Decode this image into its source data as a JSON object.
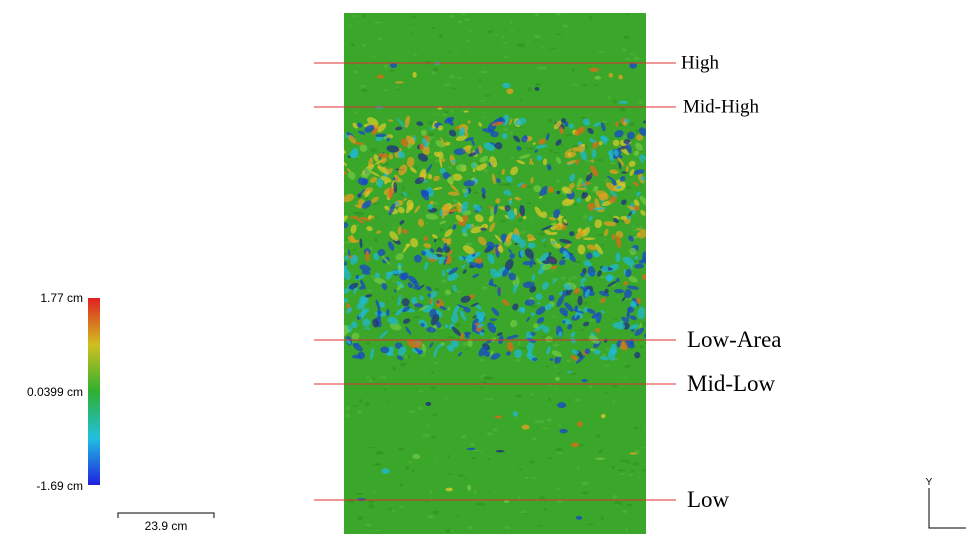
{
  "colorbar": {
    "max_label": "1.77 cm",
    "mid_label": "0.0399 cm",
    "min_label": "-1.69 cm"
  },
  "scale_bar": {
    "label": "23.9 cm"
  },
  "section_lines": [
    {
      "label": "High"
    },
    {
      "label": "Mid-High"
    },
    {
      "label": "Low-Area"
    },
    {
      "label": "Mid-Low"
    },
    {
      "label": "Low"
    }
  ],
  "axis_triad": {
    "y_label": "Y"
  }
}
